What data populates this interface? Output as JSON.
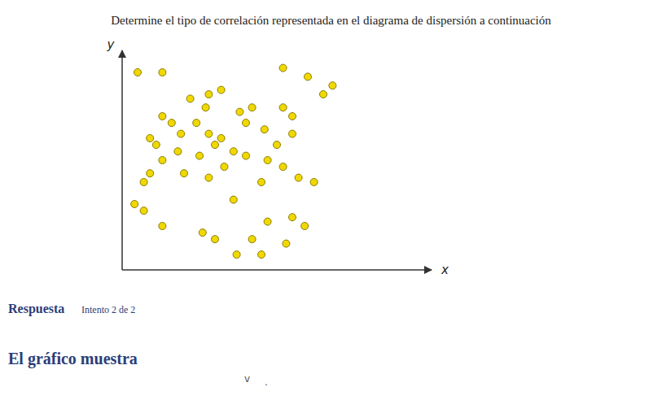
{
  "chart_data": {
    "type": "scatter",
    "title": "Determine el tipo de correlación representada en el diagrama de dispersión a continuación",
    "xlabel": "x",
    "ylabel": "y",
    "x": [
      0.05,
      0.13,
      0.52,
      0.6,
      0.68,
      0.65,
      0.22,
      0.28,
      0.27,
      0.32,
      0.52,
      0.55,
      0.13,
      0.16,
      0.38,
      0.42,
      0.19,
      0.24,
      0.09,
      0.11,
      0.28,
      0.32,
      0.4,
      0.46,
      0.5,
      0.55,
      0.13,
      0.18,
      0.25,
      0.3,
      0.36,
      0.4,
      0.47,
      0.52,
      0.07,
      0.09,
      0.2,
      0.28,
      0.33,
      0.45,
      0.57,
      0.62,
      0.04,
      0.07,
      0.36,
      0.47,
      0.55,
      0.59,
      0.13,
      0.26,
      0.3,
      0.42,
      0.53,
      0.37,
      0.45
    ],
    "values": [
      0.9,
      0.9,
      0.92,
      0.88,
      0.84,
      0.8,
      0.78,
      0.8,
      0.74,
      0.82,
      0.74,
      0.7,
      0.7,
      0.67,
      0.72,
      0.74,
      0.62,
      0.67,
      0.6,
      0.57,
      0.62,
      0.6,
      0.67,
      0.64,
      0.57,
      0.62,
      0.5,
      0.54,
      0.52,
      0.57,
      0.54,
      0.52,
      0.5,
      0.47,
      0.4,
      0.44,
      0.44,
      0.42,
      0.47,
      0.4,
      0.42,
      0.4,
      0.3,
      0.27,
      0.32,
      0.22,
      0.24,
      0.2,
      0.2,
      0.17,
      0.14,
      0.14,
      0.12,
      0.07,
      0.07
    ],
    "color": "#f0d800",
    "xlim": [
      0,
      1
    ],
    "ylim": [
      0,
      1
    ],
    "tick_labels": false,
    "grid": false,
    "annotations": [
      "Respuesta",
      "Intento 2 de 2",
      "El gráfico muestra",
      "v",
      "."
    ]
  }
}
